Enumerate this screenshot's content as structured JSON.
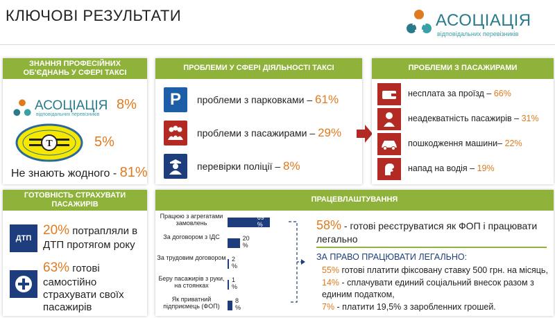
{
  "title": "КЛЮЧОВІ РЕЗУЛЬТАТИ",
  "logo": {
    "name": "АСОЦІАЦІЯ",
    "subtitle": "відповідальних перевізників",
    "icon": "association-logo-mark"
  },
  "colors": {
    "accent_green": "#8fb23a",
    "accent_orange": "#e07a1f",
    "navy": "#1d3d7d",
    "red": "#b22a23"
  },
  "panel_knowledge": {
    "header": "ЗНАННЯ ПРОФЕСІЙНИХ ОБ'ЄДНАНЬ У СФЕРІ ТАКСІ",
    "assoc_name": "АСОЦІАЦІЯ",
    "assoc_sub": "відповідальних перевізників",
    "assoc_pct": "8%",
    "taxi_pct": "5%",
    "none_text": "Не знають жодного - ",
    "none_pct": "81%"
  },
  "panel_problems": {
    "header": "ПРОБЛЕМИ У СФЕРІ ДІЯЛЬНОСТІ ТАКСІ",
    "items": [
      {
        "icon": "parking-icon",
        "glyph": "P",
        "text": "проблеми з парковками – ",
        "pct": "61%"
      },
      {
        "icon": "people-icon",
        "glyph": "",
        "text": "проблеми з пасажирами – ",
        "pct": "29%"
      },
      {
        "icon": "police-icon",
        "glyph": "",
        "text": "перевірки поліції – ",
        "pct": "8%"
      }
    ]
  },
  "panel_passengers": {
    "header": "ПРОБЛЕМИ З ПАСАЖИРАМИ",
    "items": [
      {
        "icon": "wallet-icon",
        "text": "несплата за проїзд – ",
        "pct": "66%"
      },
      {
        "icon": "person-icon",
        "text": "неадекватність пасажирів – ",
        "pct": "31%"
      },
      {
        "icon": "car-icon",
        "text": "пошкодження машини– ",
        "pct": "22%"
      },
      {
        "icon": "assault-icon",
        "text": "напад на водія – ",
        "pct": "19%"
      }
    ]
  },
  "panel_insurance": {
    "header": "ГОТОВНІСТЬ СТРАХУВАТИ ПАСАЖИРІВ",
    "dtp_label": "ДТП",
    "line1_pct": "20%",
    "line1_text": " потрапляли в ДТП протягом року",
    "line2_pct": "63%",
    "line2_text": " готові самостійно страхувати своїх пасажирів"
  },
  "panel_employment": {
    "header": "ПРАЦЕВЛАШТУВАННЯ",
    "head_pct": "58%",
    "head_text": " - готові  реєструватися як ФОП і працювати легально",
    "sub_title": "ЗА ПРАВО ПРАЦЮВАТИ ЛЕГАЛЬНО:",
    "list": [
      {
        "pct": "55%",
        "text": " готові платити фіксовану ставку 500 грн. на місяць,"
      },
      {
        "pct": "14%",
        "text": " - сплачувати единий соціальний внесок разом з единим податком,"
      },
      {
        "pct": "7%",
        "text": " - платити 19,5% з заробленних грошей."
      }
    ]
  },
  "chart_data": {
    "type": "bar",
    "orientation": "horizontal",
    "categories": [
      "Працюю з агрегатами замовлень",
      "За договором з ІДС",
      "За трудовим договором",
      "Беру пасажирів з руки, на стоянках",
      "Як приватний підприємець (ФОП)"
    ],
    "values": [
      69,
      20,
      2,
      1,
      8
    ],
    "data_labels": [
      "69 %",
      "20 %",
      "2 %",
      "1 %",
      "8 %"
    ],
    "xlim": [
      0,
      100
    ],
    "grid": false
  }
}
